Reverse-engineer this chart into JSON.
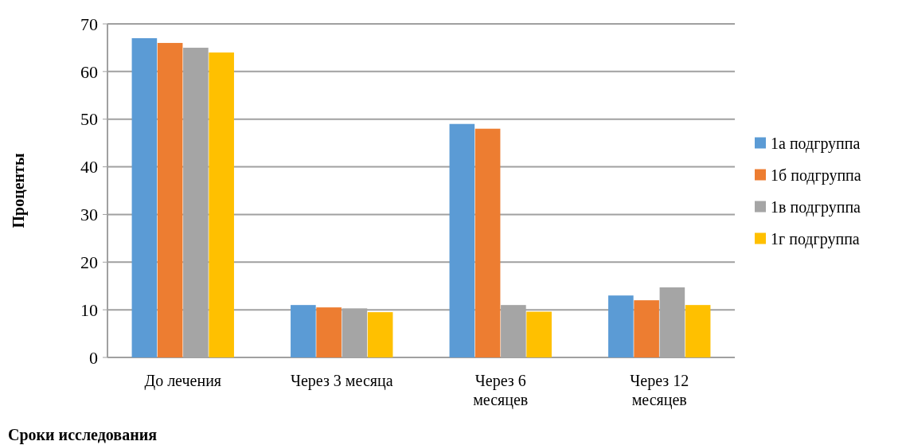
{
  "chart_data": {
    "type": "bar",
    "ylabel": "Проценты",
    "xlabel": "Сроки исследования",
    "categories": [
      "До лечения",
      "Через 3 месяца",
      "Через 6 месяцев",
      "Через 12 месяцев"
    ],
    "series": [
      {
        "name": "1а подгруппа",
        "color": "#5b9bd5",
        "values": [
          67,
          11,
          49,
          13
        ]
      },
      {
        "name": "1б подгруппа",
        "color": "#ed7d31",
        "values": [
          66,
          10.5,
          48,
          12
        ]
      },
      {
        "name": "1в подгруппа",
        "color": "#a5a5a5",
        "values": [
          65,
          10.3,
          11,
          14.7
        ]
      },
      {
        "name": "1г подгруппа",
        "color": "#ffc000",
        "values": [
          64,
          9.5,
          9.6,
          11
        ]
      }
    ],
    "ylim": [
      0,
      70
    ],
    "yticks": [
      0,
      10,
      20,
      30,
      40,
      50,
      60,
      70
    ],
    "grid": "y",
    "legend": "right"
  }
}
